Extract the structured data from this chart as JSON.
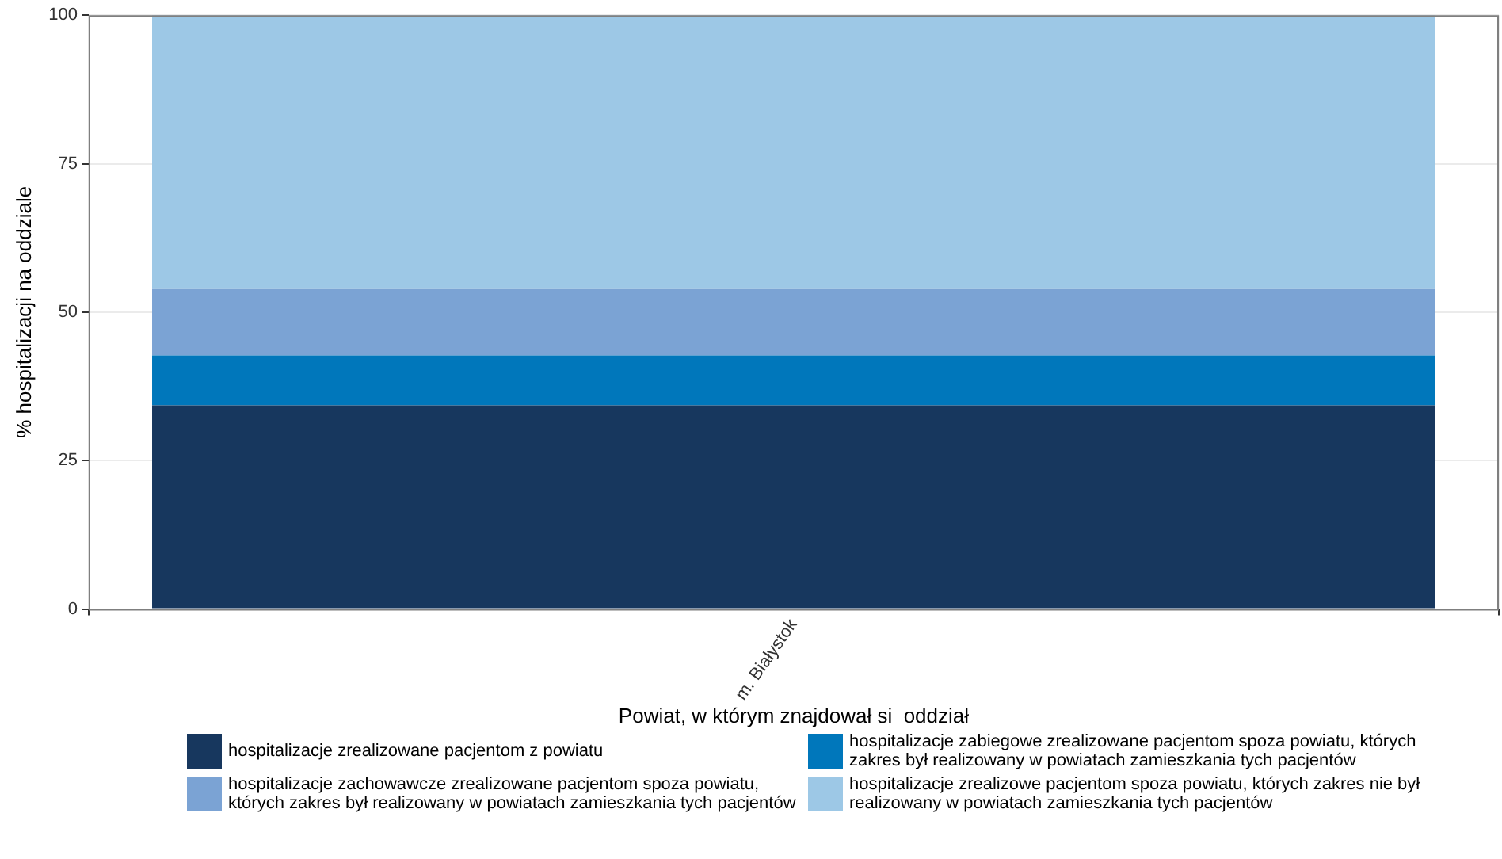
{
  "chart_data": {
    "type": "bar",
    "stacked": true,
    "xlabel": "Powiat, w którym znajdował si  oddział",
    "ylabel": "% hospitalizacji na oddziale",
    "categories": [
      "m. Białystok"
    ],
    "series": [
      {
        "name": "hospitalizacje zrealizowane pacjentom z powiatu",
        "color": "#17375e",
        "values": [
          34.3
        ]
      },
      {
        "name": "hospitalizacje zabiegowe zrealizowane pacjentom spoza powiatu, których zakres był realizowany w powiatach zamieszkania tych pacjentów",
        "color": "#0077bb",
        "values": [
          8.4
        ]
      },
      {
        "name": "hospitalizacje zachowawcze zrealizowane pacjentom spoza powiatu, których zakres był realizowany w powiatach zamieszkania tych pacjentów",
        "color": "#7ba3d4",
        "values": [
          11.2
        ]
      },
      {
        "name": "hospitalizacje zrealizowe pacjentom spoza powiatu, których zakres nie był realizowany w powiatach zamieszkania tych pacjentów",
        "color": "#9dc8e6",
        "values": [
          46.1
        ]
      }
    ],
    "ylim": [
      0,
      100
    ],
    "yticks": [
      0,
      25,
      50,
      75,
      100
    ],
    "grid": true,
    "legend": "bottom"
  }
}
